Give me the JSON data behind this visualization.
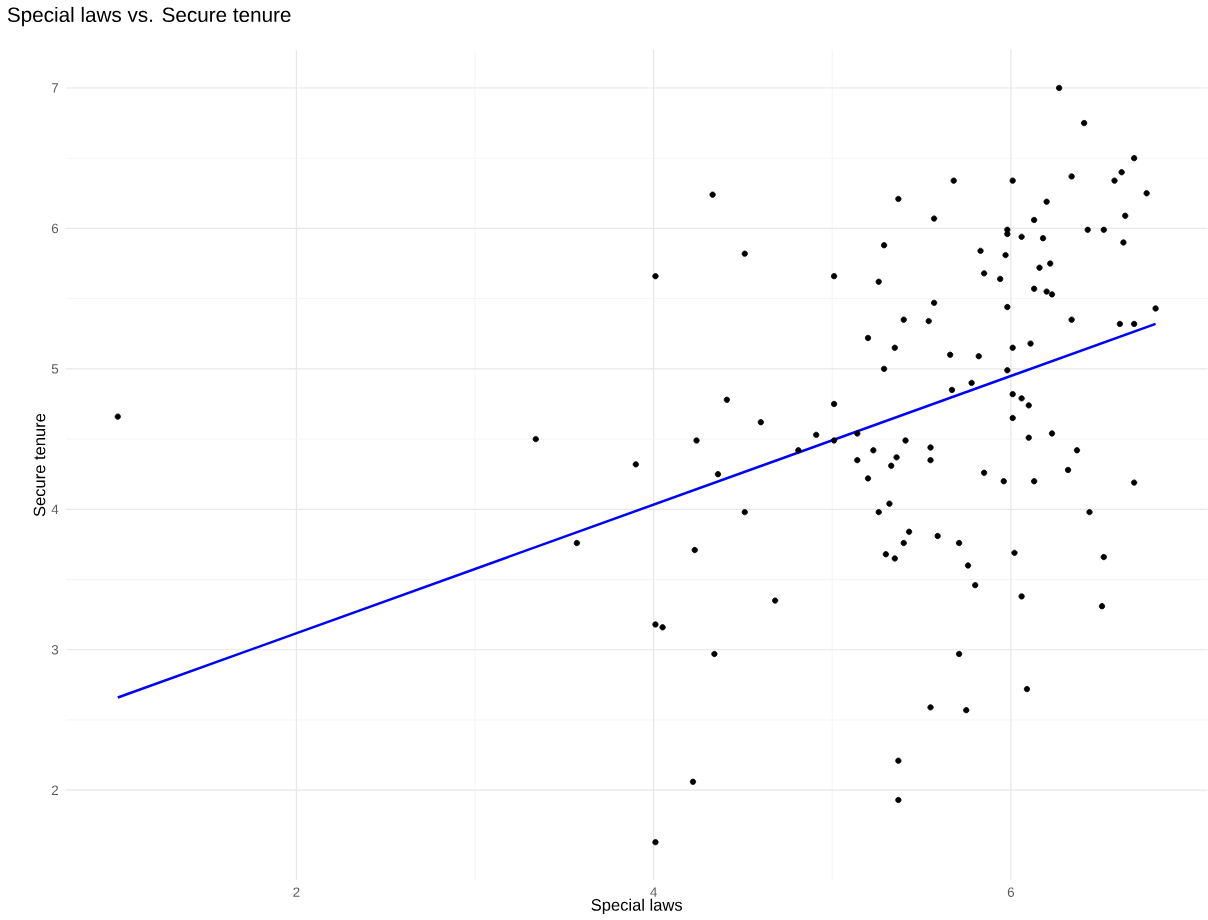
{
  "chart_data": {
    "type": "scatter",
    "title": "Special laws vs. Secure tenure",
    "xlabel": "Special laws",
    "ylabel": "Secure tenure",
    "xlim": [
      0.71,
      7.1
    ],
    "ylim": [
      1.36,
      7.27
    ],
    "xticks": [
      2,
      4,
      6
    ],
    "yticks": [
      2,
      3,
      4,
      5,
      6,
      7
    ],
    "grid": true,
    "series": [
      {
        "color": "#000000",
        "marker": "circle",
        "x": [
          1.0,
          3.34,
          3.57,
          3.9,
          4.01,
          4.33,
          4.51,
          5.01,
          4.41,
          4.6,
          5.01,
          4.91,
          4.81,
          4.24,
          4.36,
          5.01,
          5.14,
          5.14,
          4.51,
          4.23,
          4.68,
          4.01,
          4.05,
          4.34,
          4.22,
          4.01,
          6.27,
          6.41,
          6.69,
          6.62,
          6.58,
          6.34,
          6.76,
          6.64,
          6.63,
          6.43,
          6.52,
          6.2,
          6.13,
          6.18,
          6.06,
          5.98,
          5.98,
          6.01,
          5.68,
          5.37,
          5.57,
          5.29,
          5.26,
          5.83,
          5.85,
          5.97,
          5.94,
          6.16,
          6.22,
          6.13,
          6.2,
          6.23,
          5.57,
          5.54,
          5.4,
          5.2,
          5.35,
          5.29,
          5.98,
          6.34,
          6.61,
          6.69,
          6.81,
          5.66,
          5.82,
          6.01,
          6.11,
          5.98,
          5.78,
          5.67,
          6.01,
          6.06,
          6.1,
          6.01,
          6.1,
          6.23,
          6.37,
          5.23,
          5.41,
          5.36,
          5.55,
          5.55,
          5.33,
          5.2,
          5.85,
          5.96,
          6.13,
          6.32,
          6.69,
          6.44,
          5.32,
          5.26,
          5.43,
          5.4,
          5.3,
          5.35,
          5.59,
          5.71,
          5.76,
          5.8,
          6.02,
          6.06,
          6.52,
          6.51,
          5.71,
          6.09,
          5.55,
          5.75,
          5.37,
          5.37
        ],
        "values": [
          4.66,
          4.5,
          3.76,
          4.32,
          5.66,
          6.24,
          5.82,
          5.66,
          4.78,
          4.62,
          4.75,
          4.53,
          4.42,
          4.49,
          4.25,
          4.49,
          4.35,
          4.54,
          3.98,
          3.71,
          3.35,
          3.18,
          3.16,
          2.97,
          2.06,
          1.63,
          7.0,
          6.75,
          6.5,
          6.4,
          6.34,
          6.37,
          6.25,
          6.09,
          5.9,
          5.99,
          5.99,
          6.19,
          6.06,
          5.93,
          5.94,
          5.99,
          5.96,
          6.34,
          6.34,
          6.21,
          6.07,
          5.88,
          5.62,
          5.84,
          5.68,
          5.81,
          5.64,
          5.72,
          5.75,
          5.57,
          5.55,
          5.53,
          5.47,
          5.34,
          5.35,
          5.22,
          5.15,
          5.0,
          5.44,
          5.35,
          5.32,
          5.32,
          5.43,
          5.1,
          5.09,
          5.15,
          5.18,
          4.99,
          4.9,
          4.85,
          4.82,
          4.79,
          4.74,
          4.65,
          4.51,
          4.54,
          4.42,
          4.42,
          4.49,
          4.37,
          4.44,
          4.35,
          4.31,
          4.22,
          4.26,
          4.2,
          4.2,
          4.28,
          4.19,
          3.98,
          4.04,
          3.98,
          3.84,
          3.76,
          3.68,
          3.65,
          3.81,
          3.76,
          3.6,
          3.46,
          3.69,
          3.38,
          3.66,
          3.31,
          2.97,
          2.72,
          2.59,
          2.57,
          2.21,
          1.93
        ]
      },
      {
        "type": "line",
        "color": "#0000ff",
        "marker": "none",
        "x": [
          1.0,
          6.81
        ],
        "values": [
          2.66,
          5.32
        ]
      }
    ]
  }
}
